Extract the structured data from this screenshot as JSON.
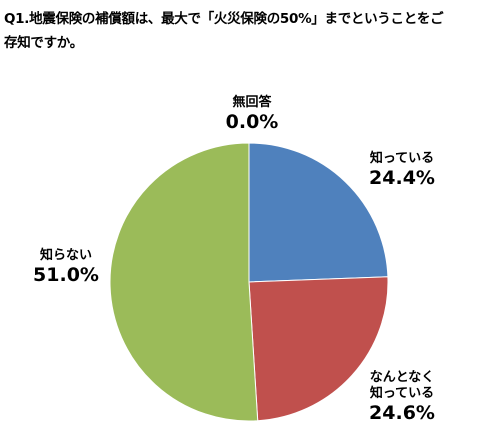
{
  "question": {
    "line1": "Q1.地震保険の補償額は、最大で「火災保険の50%」までということをご",
    "line2": "存知ですか。"
  },
  "chart_data": {
    "type": "pie",
    "start_angle_deg": 0,
    "direction": "clockwise",
    "slices": [
      {
        "label": [
          "知っている"
        ],
        "value": 24.4,
        "value_label": "24.4%",
        "color": "#4F81BD"
      },
      {
        "label": [
          "なんとなく",
          "知っている"
        ],
        "value": 24.6,
        "value_label": "24.6%",
        "color": "#C0504D"
      },
      {
        "label": [
          "知らない"
        ],
        "value": 51.0,
        "value_label": "51.0%",
        "color": "#9BBB59"
      },
      {
        "label": [
          "無回答"
        ],
        "value": 0.0,
        "value_label": "0.0%",
        "color": "#8064A2"
      }
    ]
  }
}
